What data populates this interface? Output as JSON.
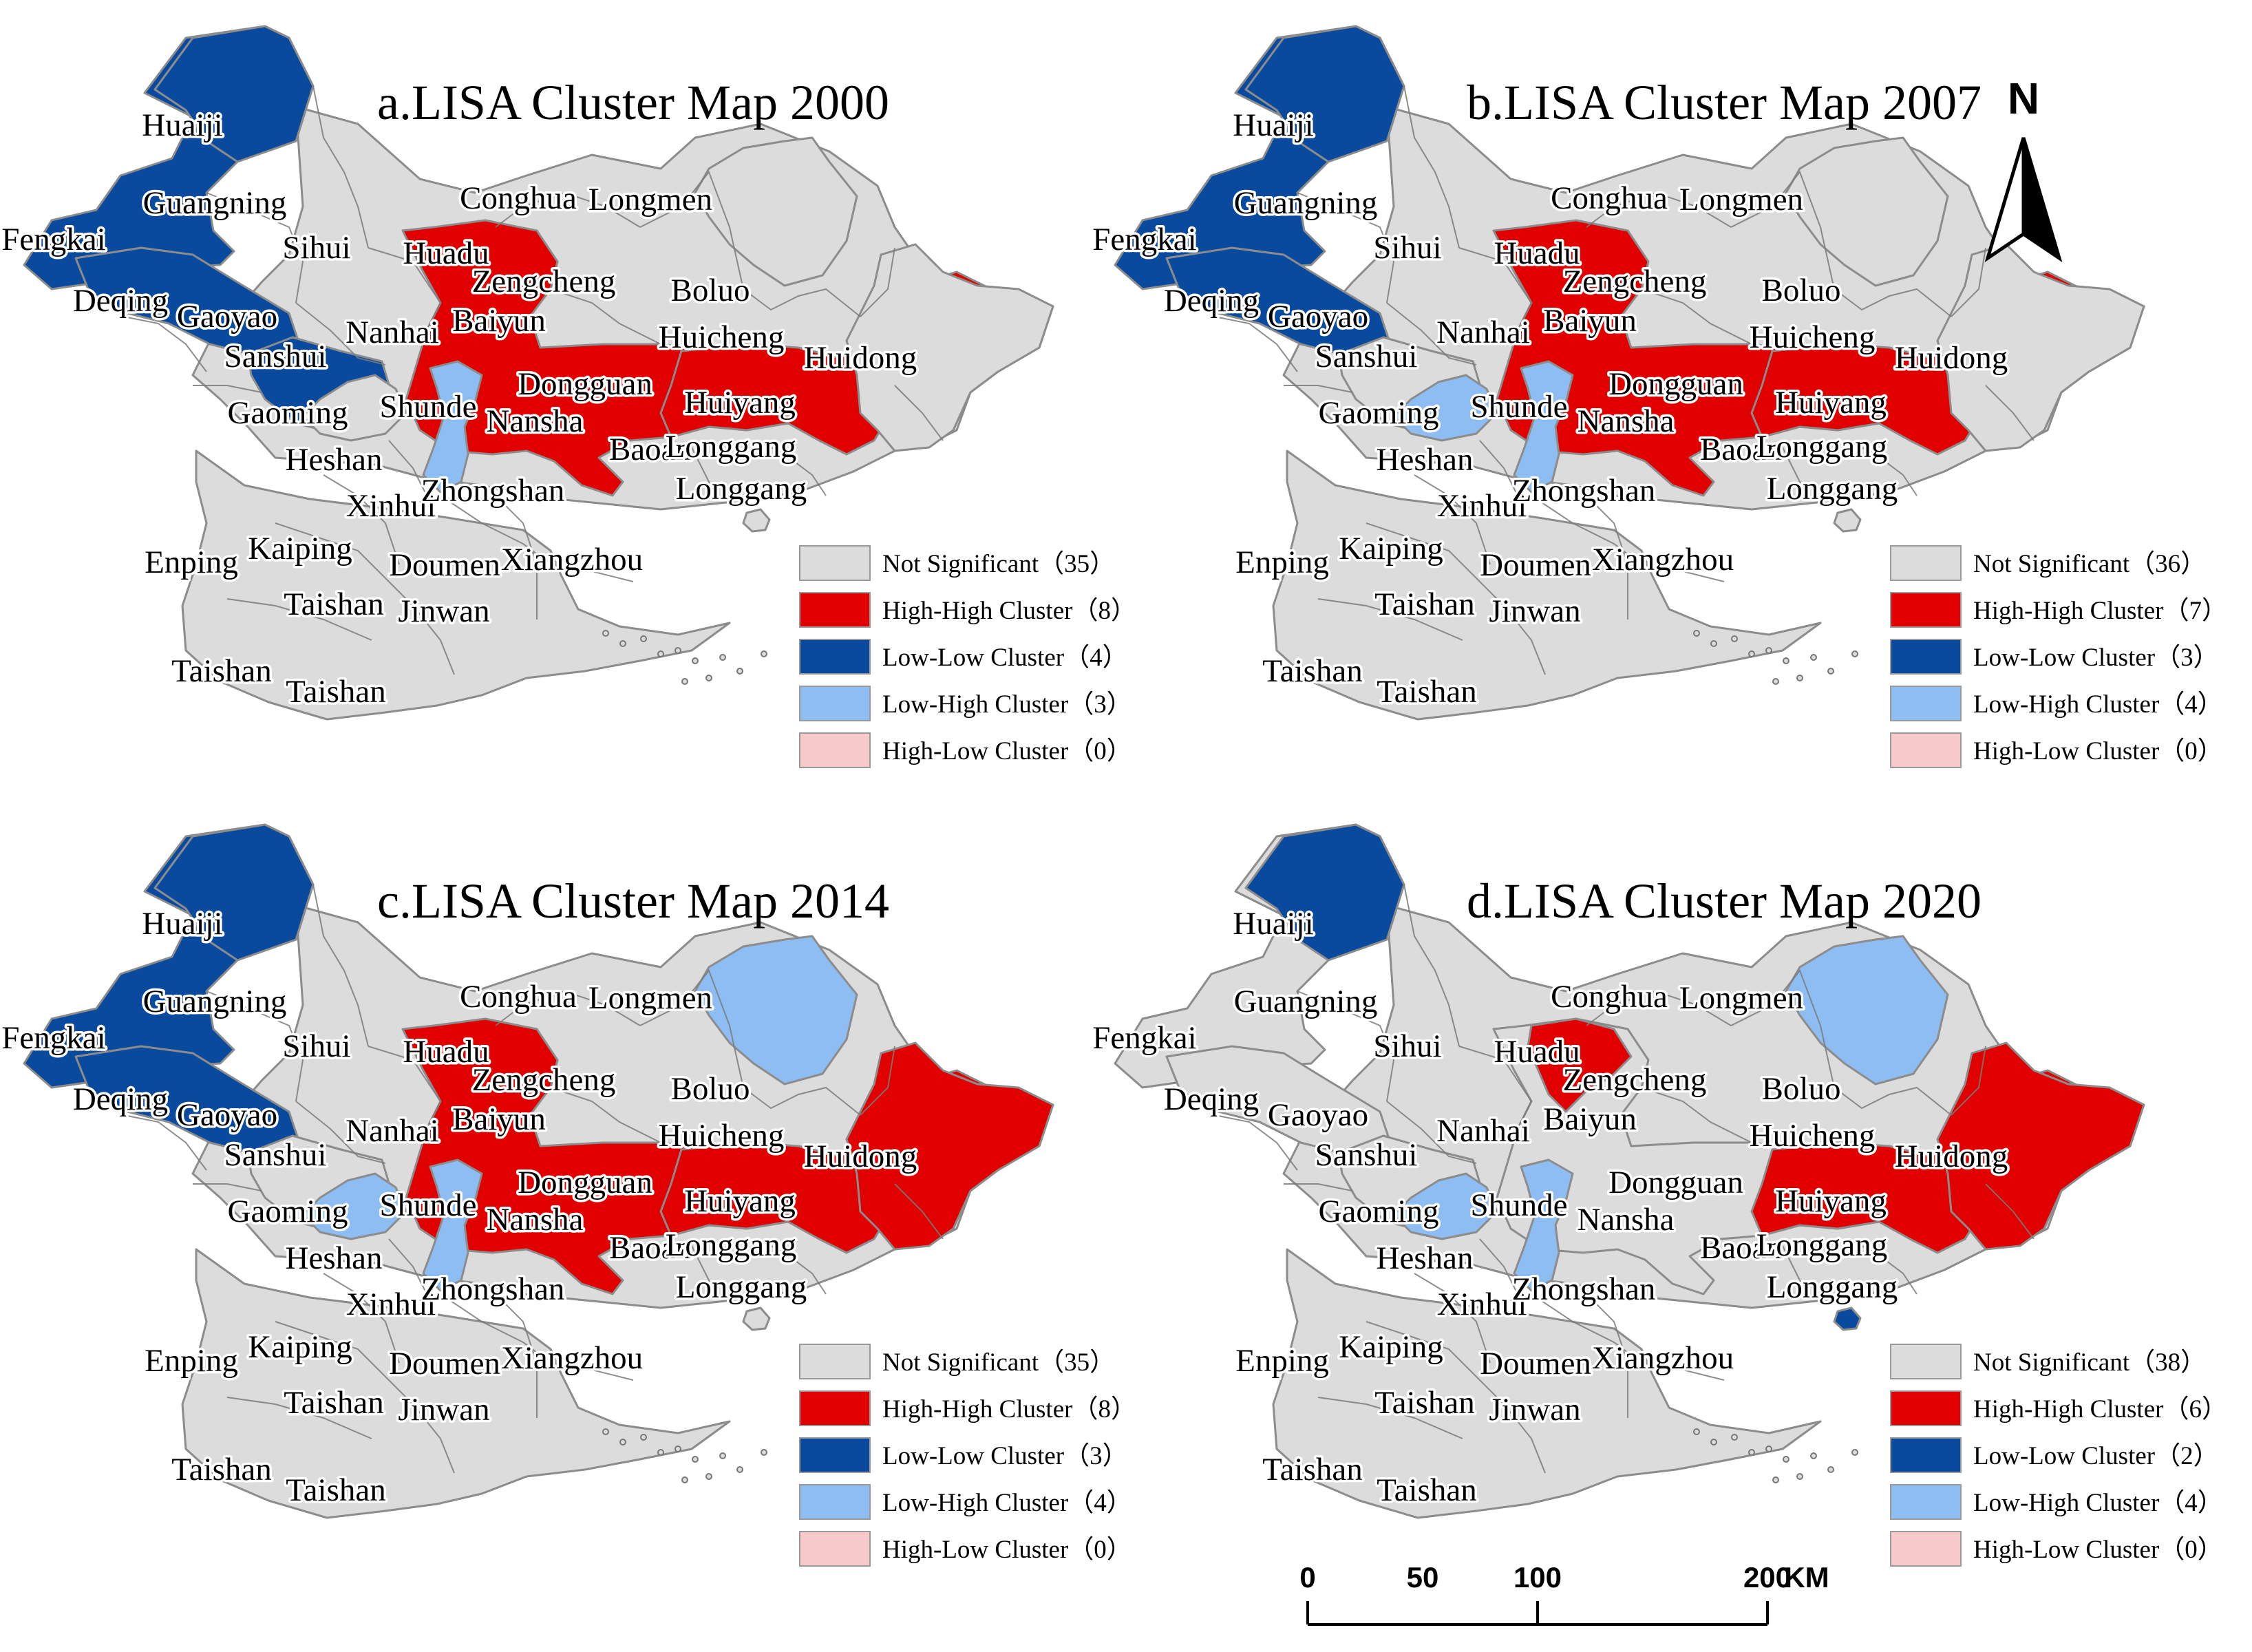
{
  "colors": {
    "not_significant": "#dcdcdc",
    "high_high": "#e00000",
    "low_low": "#0a4a9e",
    "low_high": "#8dbdf2",
    "high_low": "#f7c9c9"
  },
  "panels": [
    {
      "title": "a.LISA Cluster Map 2000",
      "zones": {
        "northwest": "low_low",
        "huaiji": "low_low",
        "deqing": "low_low",
        "sanshui": "low_low",
        "central": "high_high",
        "east_corridor": "high_high",
        "longmen": "not_significant",
        "east": "not_significant",
        "shunde": "low_high",
        "gaoming": "not_significant",
        "spot": "not_significant"
      },
      "legend": [
        {
          "key": "not_significant",
          "label": "Not Significant（35）"
        },
        {
          "key": "high_high",
          "label": "High-High Cluster（8）"
        },
        {
          "key": "low_low",
          "label": "Low-Low Cluster（4）"
        },
        {
          "key": "low_high",
          "label": "Low-High Cluster（3）"
        },
        {
          "key": "high_low",
          "label": "High-Low Cluster（0）"
        }
      ]
    },
    {
      "title": "b.LISA Cluster Map 2007",
      "zones": {
        "northwest": "low_low",
        "huaiji": "low_low",
        "deqing": "low_low",
        "sanshui": "not_significant",
        "central": "high_high",
        "east_corridor": "high_high",
        "longmen": "not_significant",
        "east": "not_significant",
        "shunde": "low_high",
        "gaoming": "low_high",
        "spot": "not_significant"
      },
      "legend": [
        {
          "key": "not_significant",
          "label": "Not Significant（36）"
        },
        {
          "key": "high_high",
          "label": "High-High Cluster（7）"
        },
        {
          "key": "low_low",
          "label": "Low-Low Cluster（3）"
        },
        {
          "key": "low_high",
          "label": "Low-High Cluster（4）"
        },
        {
          "key": "high_low",
          "label": "High-Low Cluster（0）"
        }
      ]
    },
    {
      "title": "c.LISA Cluster Map 2014",
      "zones": {
        "northwest": "low_low",
        "huaiji": "low_low",
        "deqing": "low_low",
        "sanshui": "not_significant",
        "central": "high_high",
        "east_corridor": "high_high",
        "longmen": "low_high",
        "east": "high_high",
        "shunde": "low_high",
        "gaoming": "low_high",
        "spot": "not_significant"
      },
      "legend": [
        {
          "key": "not_significant",
          "label": "Not Significant（35）"
        },
        {
          "key": "high_high",
          "label": "High-High Cluster（8）"
        },
        {
          "key": "low_low",
          "label": "Low-Low Cluster（3）"
        },
        {
          "key": "low_high",
          "label": "Low-High Cluster（4）"
        },
        {
          "key": "high_low",
          "label": "High-Low Cluster（0）"
        }
      ]
    },
    {
      "title": "d.LISA Cluster Map 2020",
      "zones": {
        "northwest": "not_significant",
        "huaiji": "low_low",
        "deqing": "not_significant",
        "sanshui": "not_significant",
        "central": "not_significant",
        "east_corridor": "high_high",
        "longmen": "low_high",
        "east": "high_high",
        "shunde": "low_high",
        "gaoming": "low_high",
        "spot": "low_low",
        "huadu": "high_high"
      },
      "legend": [
        {
          "key": "not_significant",
          "label": "Not Significant（38）"
        },
        {
          "key": "high_high",
          "label": "High-High Cluster（6）"
        },
        {
          "key": "low_low",
          "label": "Low-Low Cluster（2）"
        },
        {
          "key": "low_high",
          "label": "Low-High Cluster（4）"
        },
        {
          "key": "high_low",
          "label": "High-Low Cluster（0）"
        }
      ]
    }
  ],
  "places": [
    "Huaiji",
    "Guangning",
    "Fengkai",
    "Sihui",
    "Deqing",
    "Gaoyao",
    "Sanshui",
    "Gaoming",
    "Heshan",
    "Huadu",
    "Conghua",
    "Longmen",
    "Zengcheng",
    "Boluo",
    "Baiyun",
    "Nanhai",
    "Shunde",
    "Nansha",
    "Dongguan",
    "Huicheng",
    "Huidong",
    "Huiyang",
    "Baoan",
    "Longgang",
    "Longgang",
    "Xinhui",
    "Zhongshan",
    "Enping",
    "Kaiping",
    "Doumen",
    "Xiangzhou",
    "Taishan",
    "Jinwan",
    "Taishan",
    "Taishan"
  ],
  "north_arrow": {
    "label": "N"
  },
  "scale_bar": {
    "ticks": [
      "0",
      "50",
      "100",
      "200"
    ],
    "unit": "KM"
  }
}
